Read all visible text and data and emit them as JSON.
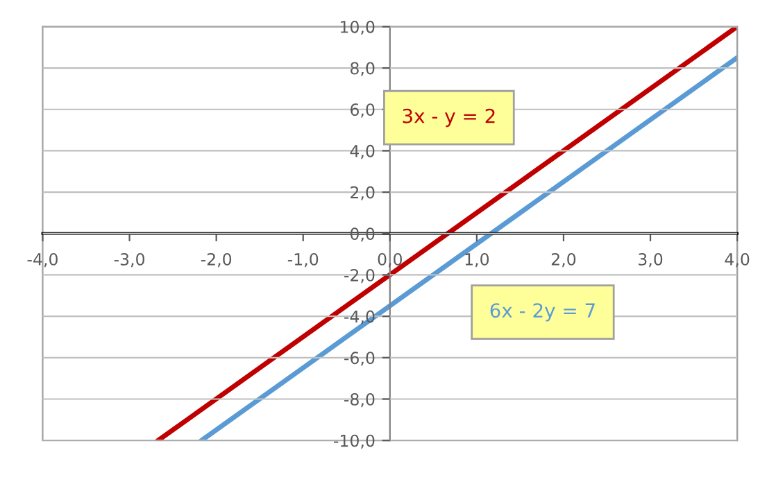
{
  "chart_data": {
    "type": "line",
    "series": [
      {
        "name": "3x - y = 2",
        "color": "#c00000",
        "x": [
          -2.67,
          4
        ],
        "values": [
          -10,
          10
        ]
      },
      {
        "name": "6x - 2y = 7",
        "color": "#5b9bd5",
        "x": [
          -2.17,
          4
        ],
        "values": [
          -10,
          8.5
        ]
      }
    ],
    "xlim": [
      -4,
      4
    ],
    "ylim": [
      -10,
      10
    ],
    "xticks": [
      {
        "value": -4,
        "label": "-4,0"
      },
      {
        "value": -3,
        "label": "-3,0"
      },
      {
        "value": -2,
        "label": "-2,0"
      },
      {
        "value": -1,
        "label": "-1,0"
      },
      {
        "value": 0,
        "label": "0,0"
      },
      {
        "value": 1,
        "label": "1,0"
      },
      {
        "value": 2,
        "label": "2,0"
      },
      {
        "value": 3,
        "label": "3,0"
      },
      {
        "value": 4,
        "label": "4,0"
      }
    ],
    "yticks": [
      {
        "value": -10,
        "label": "-10,0"
      },
      {
        "value": -8,
        "label": "-8,0"
      },
      {
        "value": -6,
        "label": "-6,0"
      },
      {
        "value": -4,
        "label": "-4,0"
      },
      {
        "value": -2,
        "label": "-2,0"
      },
      {
        "value": 0,
        "label": "0,0"
      },
      {
        "value": 2,
        "label": "2,0"
      },
      {
        "value": 4,
        "label": "4,0"
      },
      {
        "value": 6,
        "label": "6,0"
      },
      {
        "value": 8,
        "label": "8,0"
      },
      {
        "value": 10,
        "label": "10,0"
      }
    ],
    "grid": "y",
    "legend": false,
    "marker": "none",
    "line_style": "solid"
  }
}
